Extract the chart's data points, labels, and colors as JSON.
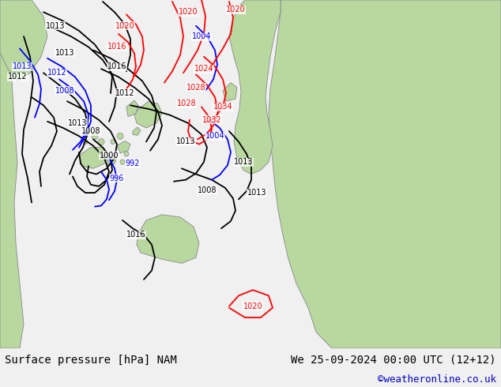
{
  "title_left": "Surface pressure [hPa] NAM",
  "title_right": "We 25-09-2024 00:00 UTC (12+12)",
  "credit": "©weatheronline.co.uk",
  "bg_color": "#e0e0e0",
  "ocean_color": "#d8d8d8",
  "land_color": "#b8d8a0",
  "font_size_title": 10,
  "font_size_credit": 9,
  "credit_color": "#0000cc",
  "contour_lw": 1.3
}
